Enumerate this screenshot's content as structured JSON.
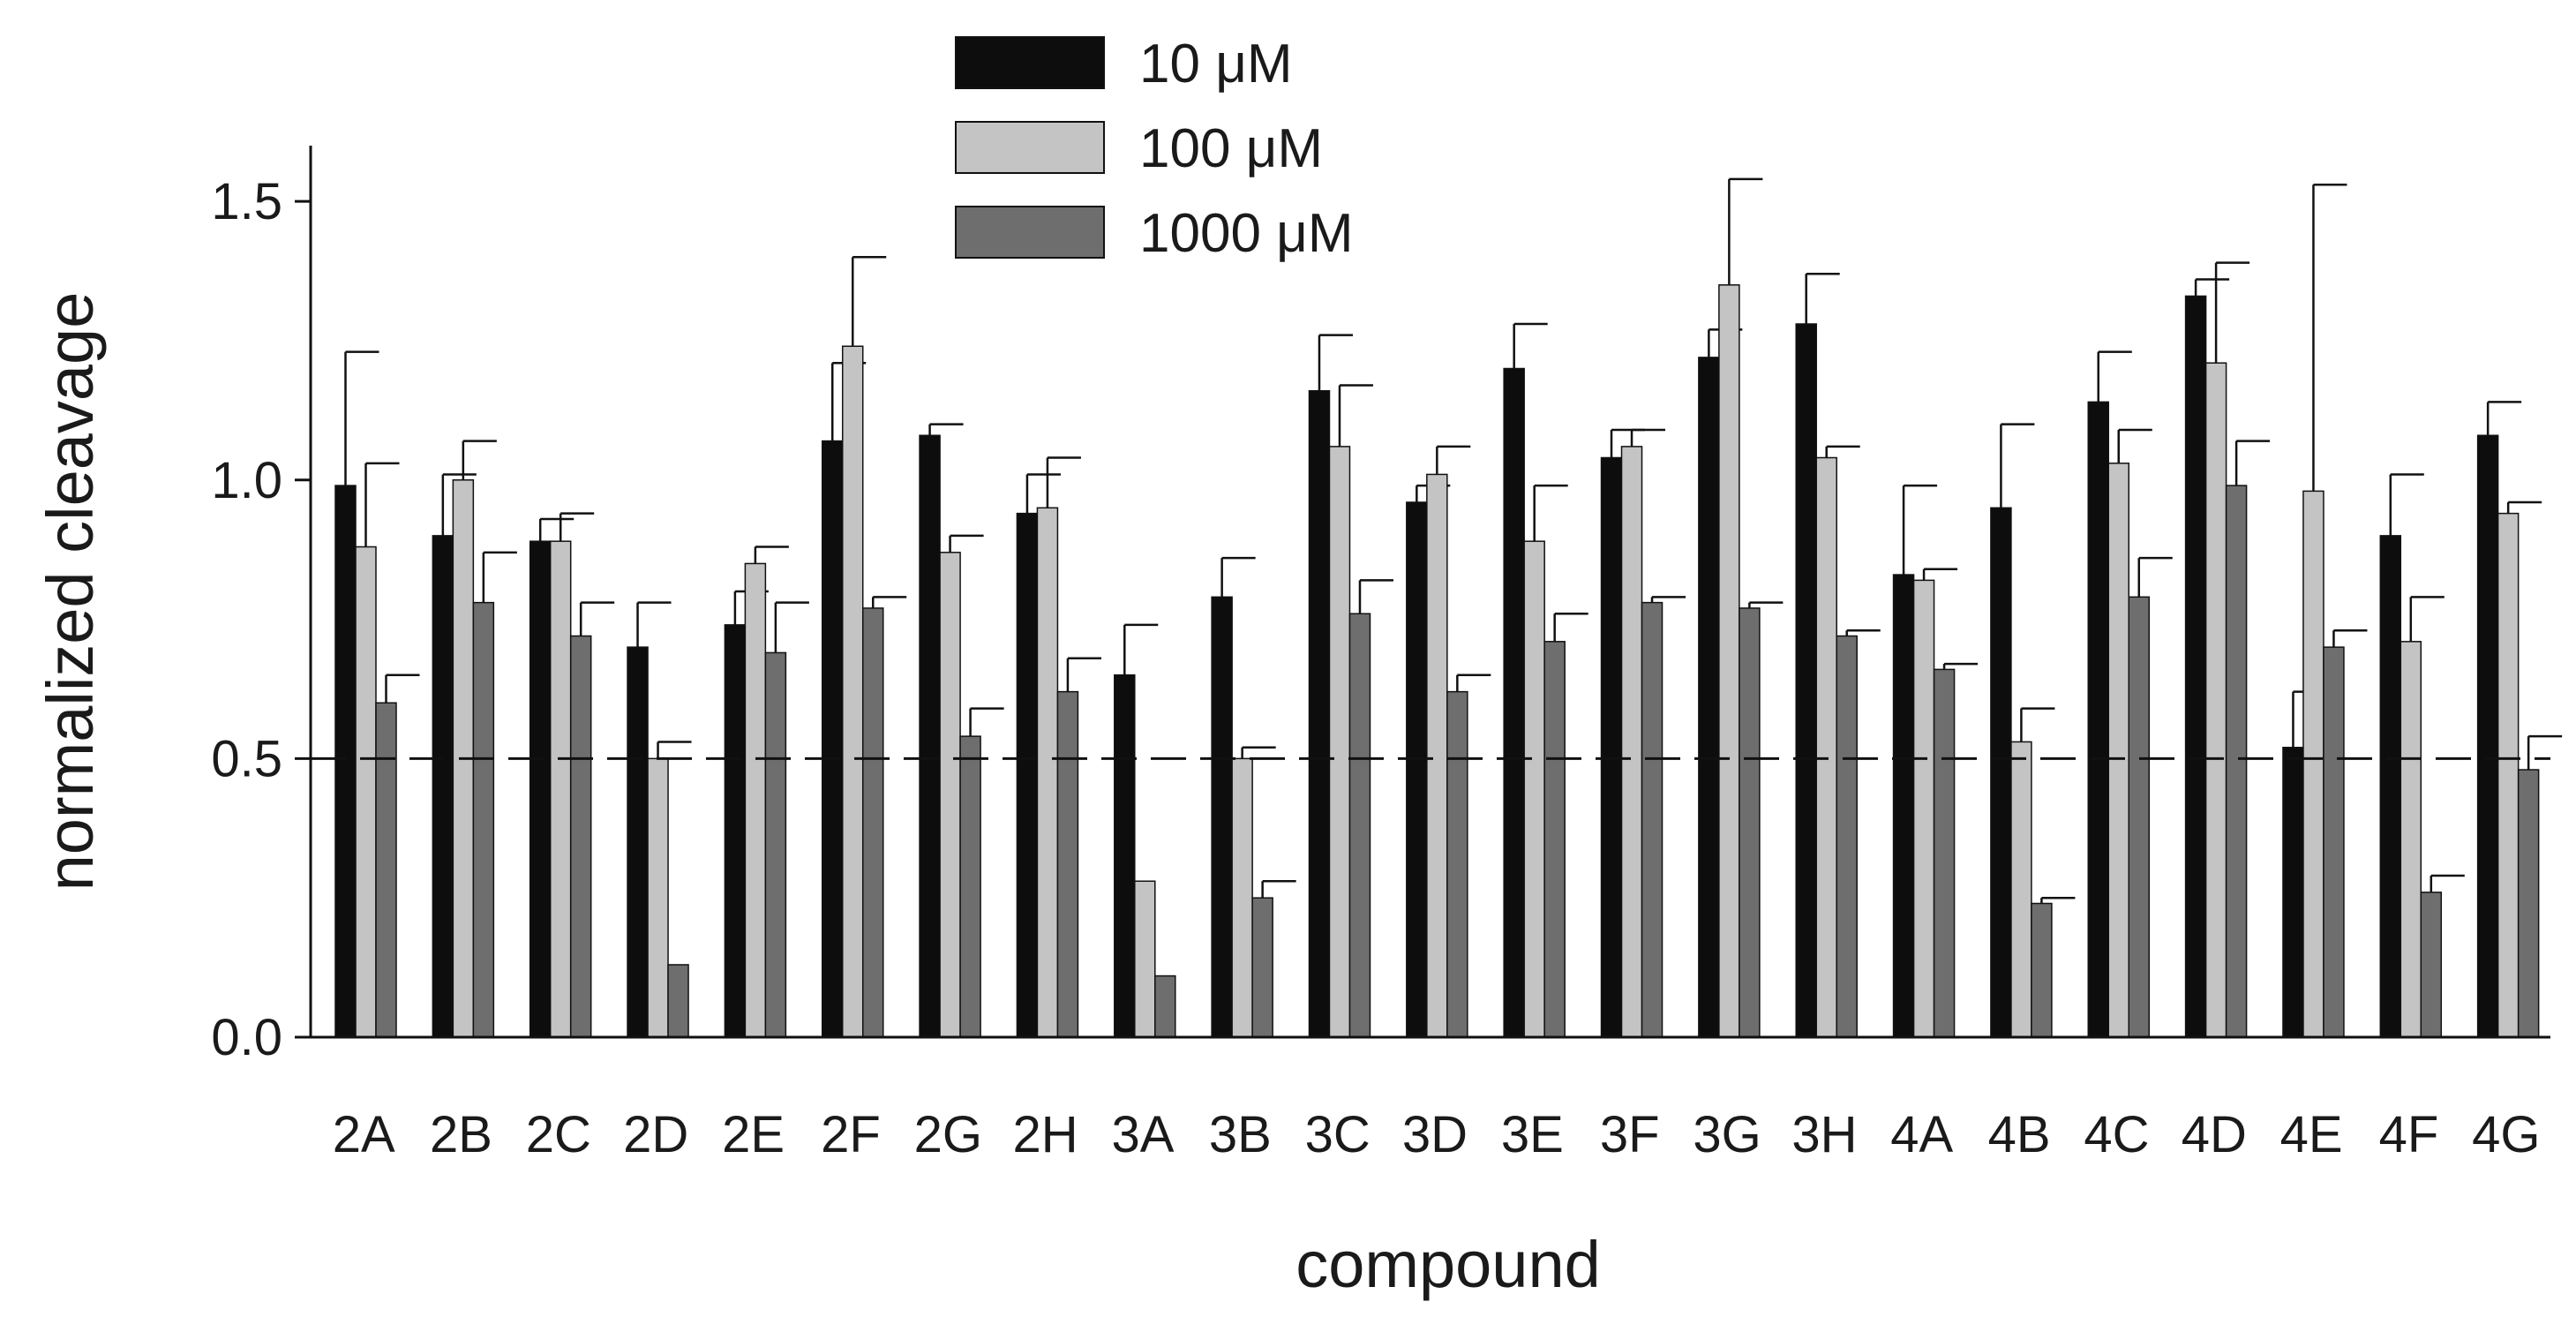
{
  "chart_data": {
    "type": "bar",
    "title": "",
    "xlabel": "compound",
    "ylabel": "normalized cleavage",
    "ylim": [
      0,
      1.6
    ],
    "yticks": [
      "0.0",
      "0.5",
      "1.0",
      "1.5"
    ],
    "ytick_values": [
      0,
      0.5,
      1.0,
      1.5
    ],
    "reference_line": {
      "y": 0.5,
      "style": "dashed"
    },
    "legend_position": "top-center",
    "grid": false,
    "categories": [
      "2A",
      "2B",
      "2C",
      "2D",
      "2E",
      "2F",
      "2G",
      "2H",
      "3A",
      "3B",
      "3C",
      "3D",
      "3E",
      "3F",
      "3G",
      "3H",
      "4A",
      "4B",
      "4C",
      "4D",
      "4E",
      "4F",
      "4G"
    ],
    "series": [
      {
        "name": "10 μM",
        "color": "#0d0d0d",
        "values": [
          0.99,
          0.9,
          0.89,
          0.7,
          0.74,
          1.07,
          1.08,
          0.94,
          0.65,
          0.79,
          1.16,
          0.96,
          1.2,
          1.04,
          1.22,
          1.28,
          0.83,
          0.95,
          1.14,
          1.33,
          0.52,
          0.9,
          1.08
        ],
        "errors": [
          0.24,
          0.11,
          0.04,
          0.08,
          0.06,
          0.14,
          0.02,
          0.07,
          0.09,
          0.07,
          0.1,
          0.03,
          0.08,
          0.05,
          0.05,
          0.09,
          0.16,
          0.15,
          0.09,
          0.03,
          0.1,
          0.11,
          0.06
        ]
      },
      {
        "name": "100 μM",
        "color": "#c4c4c4",
        "values": [
          0.88,
          1.0,
          0.89,
          0.5,
          0.85,
          1.24,
          0.87,
          0.95,
          0.28,
          0.5,
          1.06,
          1.01,
          0.89,
          1.06,
          1.35,
          1.04,
          0.82,
          0.53,
          1.03,
          1.21,
          0.98,
          0.71,
          0.94
        ],
        "errors": [
          0.15,
          0.07,
          0.05,
          0.03,
          0.03,
          0.16,
          0.03,
          0.09,
          0.0,
          0.02,
          0.11,
          0.05,
          0.1,
          0.03,
          0.19,
          0.02,
          0.02,
          0.06,
          0.06,
          0.18,
          0.55,
          0.08,
          0.02
        ]
      },
      {
        "name": "1000 μM",
        "color": "#6e6e6e",
        "values": [
          0.6,
          0.78,
          0.72,
          0.13,
          0.69,
          0.77,
          0.54,
          0.62,
          0.11,
          0.25,
          0.76,
          0.62,
          0.71,
          0.78,
          0.77,
          0.72,
          0.66,
          0.24,
          0.79,
          0.99,
          0.7,
          0.26,
          0.48
        ],
        "errors": [
          0.05,
          0.09,
          0.06,
          0.0,
          0.09,
          0.02,
          0.05,
          0.06,
          0.0,
          0.03,
          0.06,
          0.03,
          0.05,
          0.01,
          0.01,
          0.01,
          0.01,
          0.01,
          0.07,
          0.08,
          0.03,
          0.03,
          0.06
        ]
      }
    ]
  }
}
